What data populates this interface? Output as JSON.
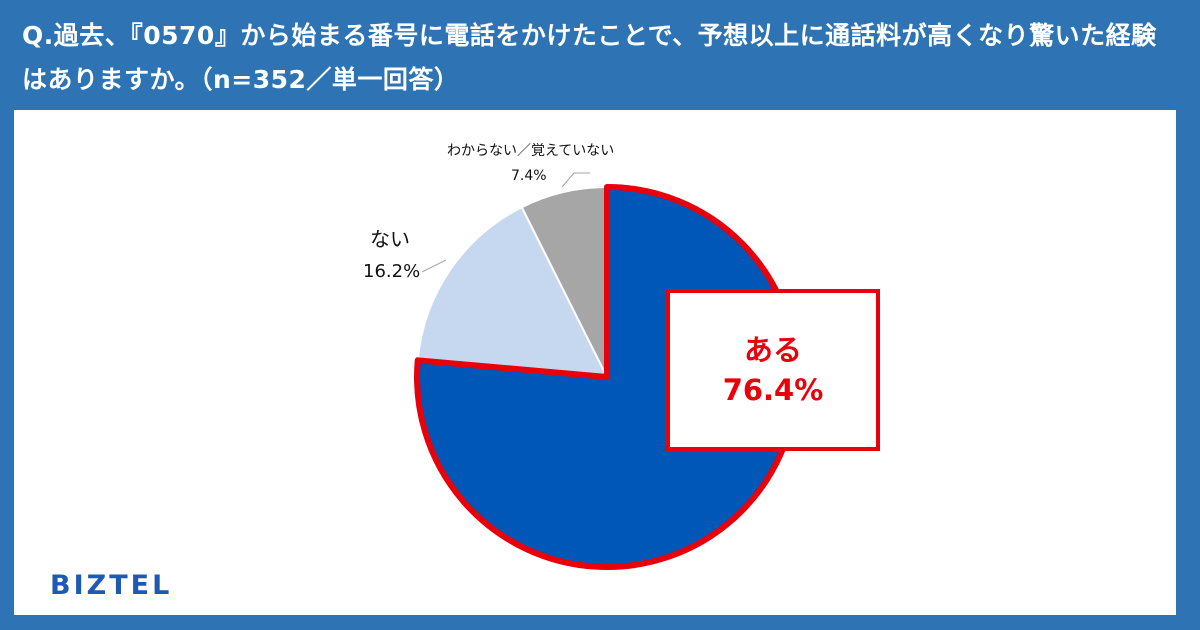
{
  "question": "Q.過去、『0570』から始まる番号に電話をかけたことで、予想以上に通話料が高くなり驚いた経験はありますか。（n=352／単一回答）",
  "chart_data": {
    "type": "pie",
    "slices": [
      {
        "name": "ある",
        "value": 76.4,
        "value_label": "76.4%",
        "color": "#0057b7",
        "highlight_color": "#e8000b"
      },
      {
        "name": "ない",
        "value": 16.2,
        "value_label": "16.2%",
        "color": "#c6d8f0"
      },
      {
        "name": "わからない／覚えていない",
        "value": 7.4,
        "value_label": "7.4%",
        "color": "#a6a6a6"
      }
    ],
    "start_angle": "12 o'clock",
    "direction": "clockwise"
  },
  "brand": {
    "logo_text": "BIZTEL",
    "color": "#1e5ab4"
  },
  "colors": {
    "background": "#2e74b5",
    "panel": "#ffffff",
    "leader_line": "#a6a6a6"
  }
}
